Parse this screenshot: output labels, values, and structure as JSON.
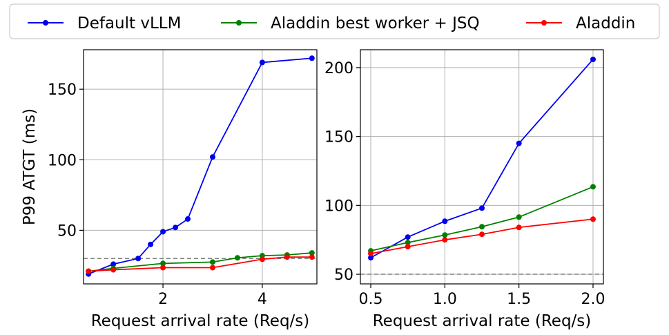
{
  "chart_data": [
    {
      "type": "line",
      "xlabel": "Request arrival rate (Req/s)",
      "ylabel": "P99 ATGT (ms)",
      "xlim": [
        0.4,
        5.1
      ],
      "ylim": [
        12,
        178
      ],
      "xticks": [
        2,
        4
      ],
      "yticks": [
        50,
        100,
        150
      ],
      "grid": true,
      "reference_line": 30,
      "series": [
        {
          "name": "Default vLLM",
          "color": "#0000ee",
          "x": [
            0.5,
            1.0,
            1.5,
            1.75,
            2.0,
            2.25,
            2.5,
            3.0,
            4.0,
            5.0
          ],
          "y": [
            19,
            26,
            30,
            40,
            49,
            52,
            58,
            102,
            169,
            172
          ]
        },
        {
          "name": "Aladdin best worker + JSQ",
          "color": "#008000",
          "x": [
            0.5,
            1.0,
            2.0,
            3.0,
            3.5,
            4.0,
            4.5,
            5.0
          ],
          "y": [
            21,
            23,
            26.5,
            27.5,
            30.5,
            32,
            32.5,
            34
          ]
        },
        {
          "name": "Aladdin",
          "color": "#ff0000",
          "x": [
            0.5,
            1.0,
            2.0,
            3.0,
            4.0,
            4.5,
            5.0
          ],
          "y": [
            21,
            22,
            23.5,
            23.5,
            29.5,
            31,
            31
          ]
        }
      ]
    },
    {
      "type": "line",
      "xlabel": "Request arrival rate (Req/s)",
      "ylabel": "",
      "xlim": [
        0.43,
        2.07
      ],
      "ylim": [
        43,
        213
      ],
      "xticks": [
        0.5,
        1.0,
        1.5,
        2.0
      ],
      "xtick_labels": [
        "0.5",
        "1.0",
        "1.5",
        "2.0"
      ],
      "yticks": [
        50,
        100,
        150,
        200
      ],
      "grid": true,
      "reference_line": 50,
      "series": [
        {
          "name": "Default vLLM",
          "color": "#0000ee",
          "x": [
            0.5,
            0.75,
            1.0,
            1.25,
            1.5,
            2.0
          ],
          "y": [
            62,
            77,
            88.5,
            98,
            145,
            206
          ]
        },
        {
          "name": "Aladdin best worker + JSQ",
          "color": "#008000",
          "x": [
            0.5,
            0.75,
            1.0,
            1.25,
            1.5,
            2.0
          ],
          "y": [
            67,
            73,
            78.5,
            84.5,
            91.5,
            113.5
          ]
        },
        {
          "name": "Aladdin",
          "color": "#ff0000",
          "x": [
            0.5,
            0.75,
            1.0,
            1.25,
            1.5,
            2.0
          ],
          "y": [
            65,
            70,
            75,
            79,
            84,
            90
          ]
        }
      ]
    }
  ],
  "legend": {
    "placement": "top",
    "entries": [
      {
        "label": "Default vLLM",
        "color": "#0000ee"
      },
      {
        "label": "Aladdin best worker + JSQ",
        "color": "#008000"
      },
      {
        "label": "Aladdin",
        "color": "#ff0000"
      }
    ]
  }
}
